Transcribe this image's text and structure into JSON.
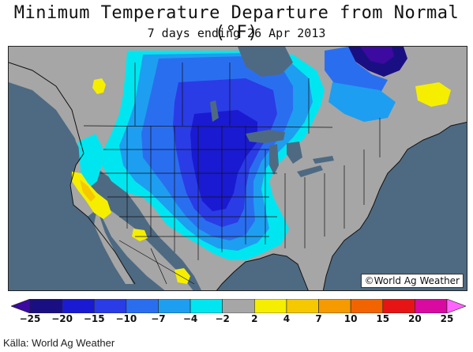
{
  "title": "Minimum Temperature Departure from Normal (°F)",
  "subtitle": "7 days ending 26 Apr 2013",
  "copyright": "©World Ag Weather",
  "source_caption": "Källa: World Ag Weather",
  "legend": {
    "labels": [
      "-25",
      "-20",
      "-15",
      "-10",
      "-7",
      "-4",
      "-2",
      "2",
      "4",
      "7",
      "10",
      "15",
      "20",
      "25"
    ],
    "colors": [
      "#3c0aa0",
      "#1a0f82",
      "#1a1ad2",
      "#2a3ce6",
      "#2a6ef0",
      "#1e9ef0",
      "#00e6f0",
      "#a6a6a6",
      "#f5ee00",
      "#f5c800",
      "#f59a00",
      "#f26400",
      "#e61414",
      "#d80aa0",
      "#ff64ff"
    ]
  },
  "map_colors": {
    "ocean": "#4e6a82",
    "land_neutral": "#a6a6a6",
    "cyan": "#00e6f0",
    "light_blue": "#1e9ef0",
    "blue": "#2a6ef0",
    "medium_blue": "#2a3ce6",
    "dark_blue": "#1a1ad2",
    "navy": "#1a0f82",
    "purple": "#3c0aa0",
    "yellow": "#f5ee00",
    "light_orange": "#f5c800",
    "lakes": "#4e6a82",
    "borders": "#111111"
  }
}
